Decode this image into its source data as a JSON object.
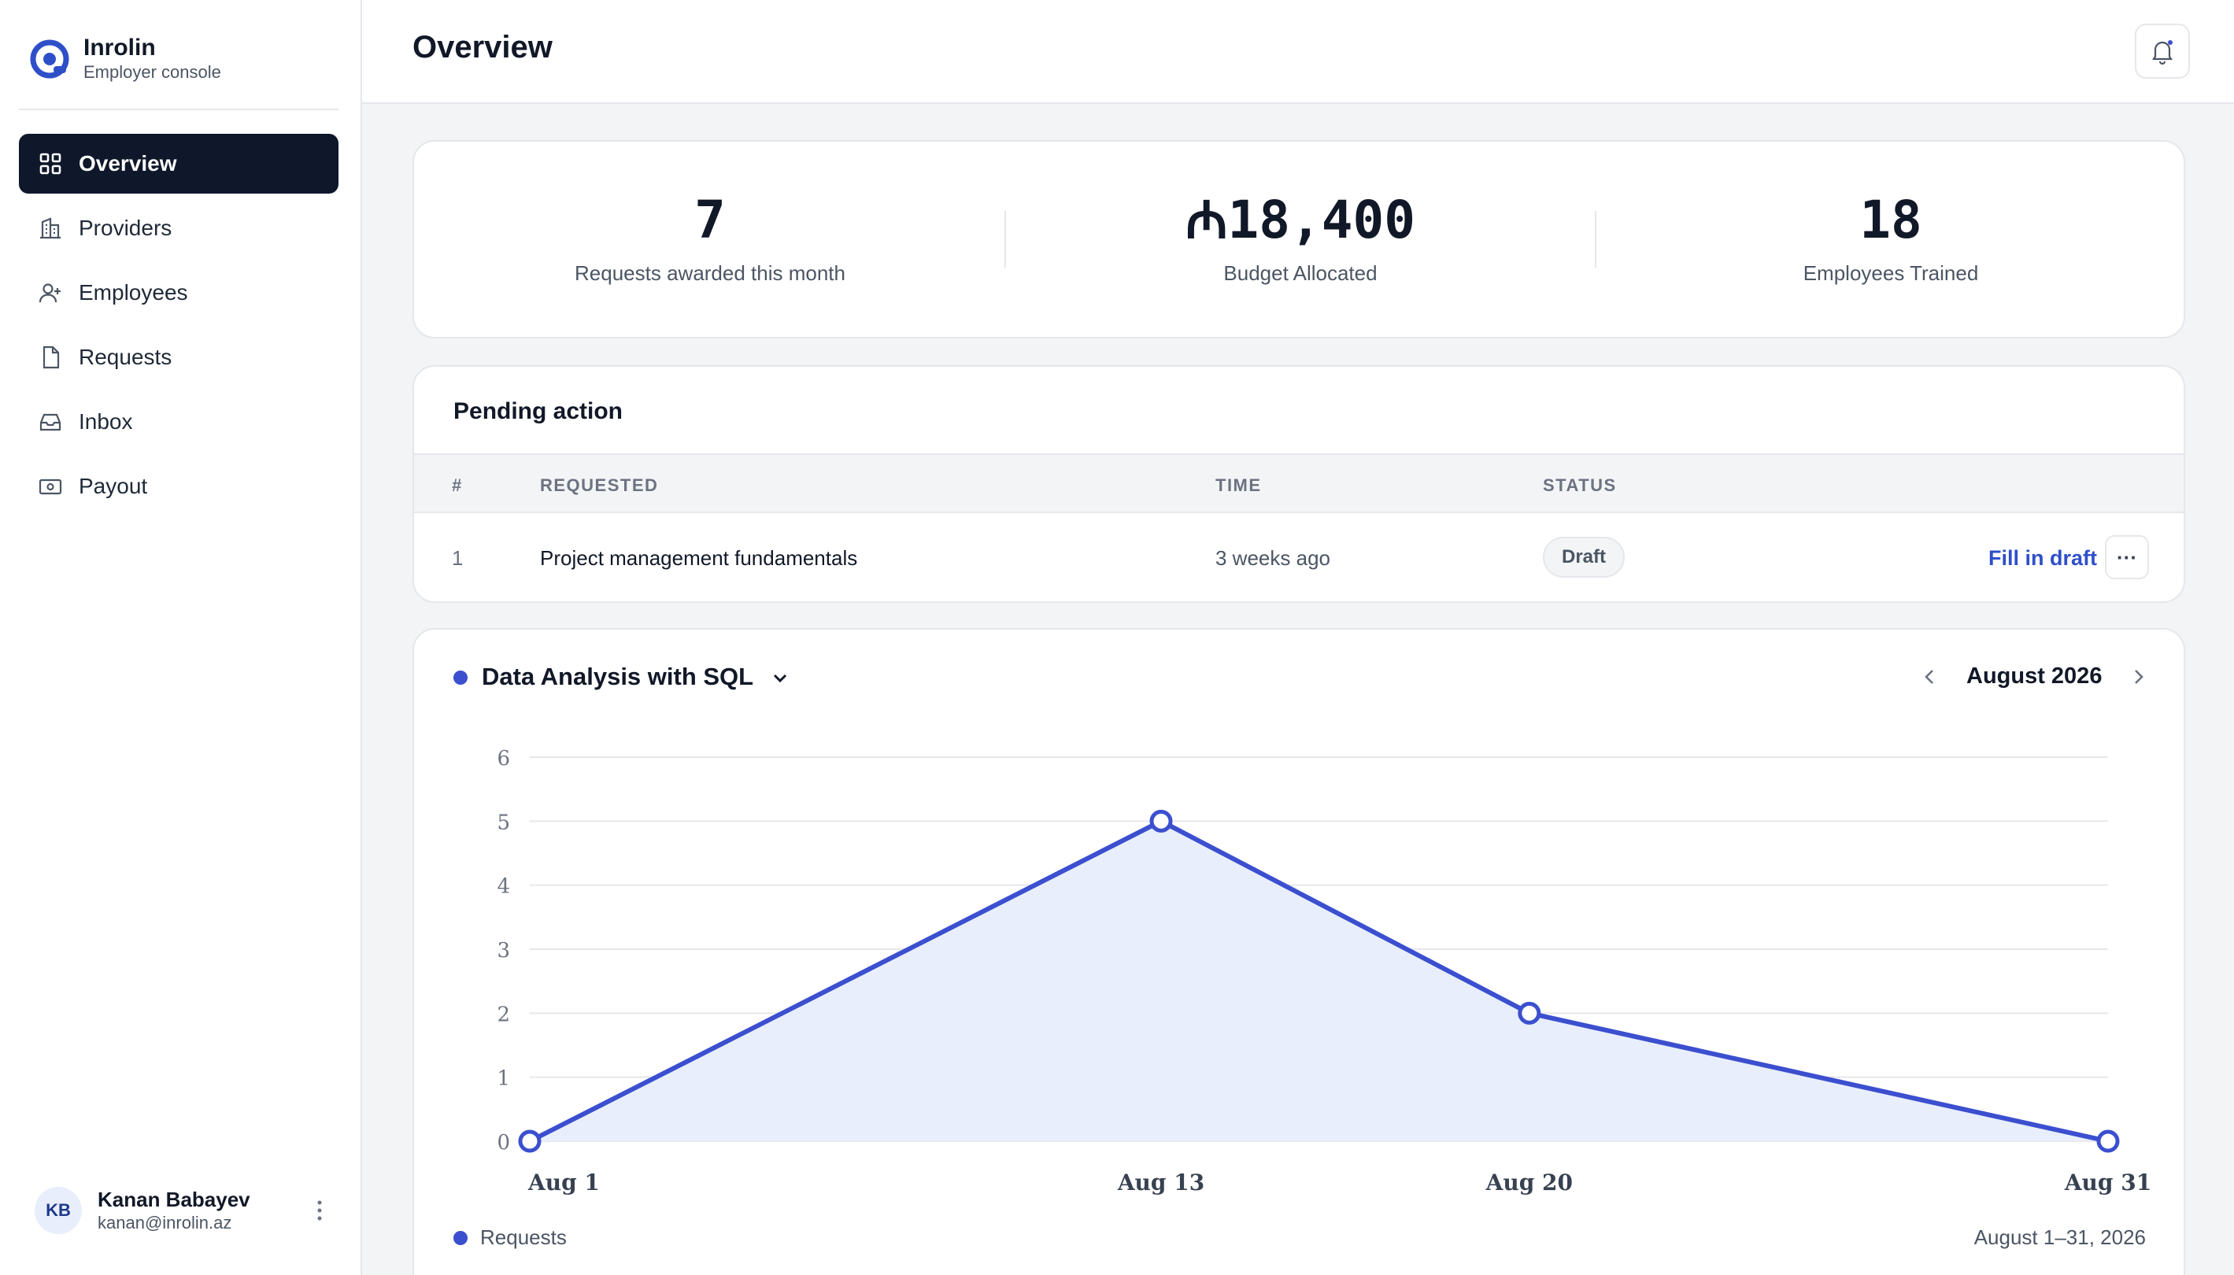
{
  "app": {
    "name": "Inrolin",
    "subtitle": "Employer console",
    "logo_icon": "inrolin-logo-icon",
    "accent_color": "#3b4fcf"
  },
  "sidebar": {
    "items": [
      {
        "label": "Overview",
        "icon": "grid-icon",
        "active": true
      },
      {
        "label": "Providers",
        "icon": "building-icon",
        "active": false
      },
      {
        "label": "Employees",
        "icon": "user-plus-icon",
        "active": false
      },
      {
        "label": "Requests",
        "icon": "file-icon",
        "active": false
      },
      {
        "label": "Inbox",
        "icon": "inbox-icon",
        "active": false
      },
      {
        "label": "Payout",
        "icon": "banknote-icon",
        "active": false
      }
    ],
    "user": {
      "initials": "KB",
      "name": "Kanan Babayev",
      "email": "kanan@inrolin.az"
    }
  },
  "header": {
    "title": "Overview",
    "notification_icon": "bell-icon"
  },
  "stats": [
    {
      "value": "7",
      "label": "Requests awarded this month"
    },
    {
      "value": "₼18,400",
      "label": "Budget Allocated"
    },
    {
      "value": "18",
      "label": "Employees Trained"
    }
  ],
  "pending": {
    "title": "Pending action",
    "columns": {
      "num": "#",
      "requested": "REQUESTED",
      "time": "TIME",
      "status": "STATUS"
    },
    "rows": [
      {
        "num": "1",
        "requested": "Project management fundamentals",
        "time": "3 weeks ago",
        "status": "Draft",
        "action": "Fill in draft",
        "more": "···"
      }
    ]
  },
  "chart_panel": {
    "course": "Data Analysis with SQL",
    "month": "August 2026",
    "range": "August 1–31, 2026"
  },
  "chart_data": {
    "type": "area",
    "x": [
      "Aug 1",
      "Aug 13",
      "Aug 20",
      "Aug 31"
    ],
    "x_days": [
      1,
      13,
      20,
      31
    ],
    "series": [
      {
        "name": "Requests",
        "values": [
          0,
          5,
          2,
          0
        ],
        "color": "#3b4fcf",
        "fill": "#e8eefb"
      }
    ],
    "ylim": [
      0,
      6
    ],
    "yticks": [
      0,
      1,
      2,
      3,
      4,
      5,
      6
    ],
    "xlim": [
      1,
      31
    ],
    "grid": true,
    "legend": "bottom-left",
    "title": "",
    "xlabel": "",
    "ylabel": ""
  }
}
